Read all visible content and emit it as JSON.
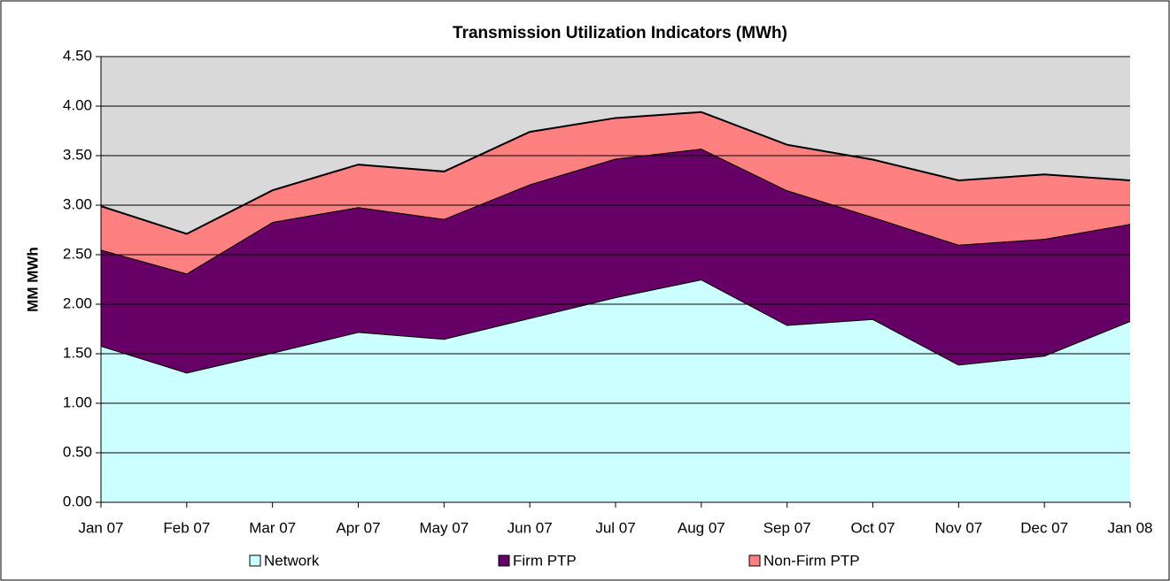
{
  "chart_data": {
    "type": "stacked-area",
    "title": "Transmission Utilization Indicators (MWh)",
    "y_label": "MM MWh",
    "categories": [
      "Jan 07",
      "Feb 07",
      "Mar 07",
      "Apr 07",
      "May 07",
      "Jun 07",
      "Jul 07",
      "Aug 07",
      "Sep 07",
      "Oct 07",
      "Nov 07",
      "Dec 07",
      "Jan 08"
    ],
    "series": [
      {
        "name": "Network",
        "color": "#ccffff",
        "values": [
          1.58,
          1.31,
          1.51,
          1.72,
          1.65,
          1.86,
          2.07,
          2.25,
          1.79,
          1.85,
          1.39,
          1.48,
          1.83
        ]
      },
      {
        "name": "Firm PTP",
        "color": "#660066",
        "values": [
          0.97,
          1.0,
          1.32,
          1.26,
          1.21,
          1.35,
          1.4,
          1.32,
          1.36,
          1.03,
          1.21,
          1.18,
          0.98
        ]
      },
      {
        "name": "Non-Firm PTP",
        "color": "#ff8080",
        "values": [
          0.44,
          0.4,
          0.32,
          0.43,
          0.48,
          0.53,
          0.41,
          0.37,
          0.46,
          0.58,
          0.65,
          0.65,
          0.44
        ]
      }
    ],
    "ylim": [
      0,
      4.5
    ],
    "yticks": [
      {
        "value": 0,
        "label": "0.00"
      },
      {
        "value": 0.5,
        "label": "0.50"
      },
      {
        "value": 1,
        "label": "1.00"
      },
      {
        "value": 1.5,
        "label": "1.50"
      },
      {
        "value": 2,
        "label": "2.00"
      },
      {
        "value": 2.5,
        "label": "2.50"
      },
      {
        "value": 3,
        "label": "3.00"
      },
      {
        "value": 3.5,
        "label": "3.50"
      },
      {
        "value": 4,
        "label": "4.00"
      },
      {
        "value": 4.5,
        "label": "4.50"
      }
    ],
    "grid": true,
    "plot_background": "#d9d9d9",
    "legend": "bottom"
  }
}
